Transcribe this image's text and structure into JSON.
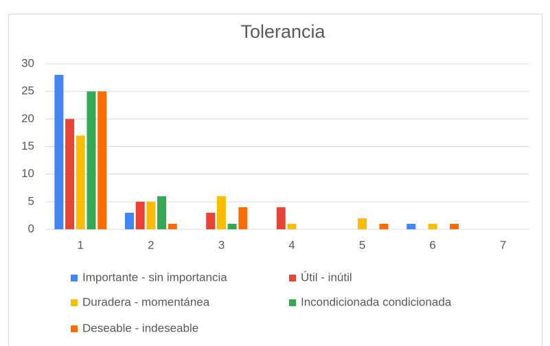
{
  "chart_data": {
    "type": "bar",
    "title": "Tolerancia",
    "categories": [
      "1",
      "2",
      "3",
      "4",
      "5",
      "6",
      "7"
    ],
    "series": [
      {
        "name": "Importante - sin importancia",
        "color": "#4285f4",
        "values": [
          28,
          3,
          0,
          0,
          0,
          1,
          0
        ]
      },
      {
        "name": "Útil - inútil",
        "color": "#ea4335",
        "values": [
          20,
          5,
          3,
          4,
          0,
          0,
          0
        ]
      },
      {
        "name": "Duradera - momentánea",
        "color": "#fbbc04",
        "values": [
          17,
          5,
          6,
          1,
          2,
          1,
          0
        ]
      },
      {
        "name": "Incondicionada condicionada",
        "color": "#34a853",
        "values": [
          25,
          6,
          1,
          0,
          0,
          0,
          0
        ]
      },
      {
        "name": "Deseable - indeseable",
        "color": "#ff6d01",
        "values": [
          25,
          1,
          4,
          0,
          1,
          1,
          0
        ]
      }
    ],
    "ylim": [
      0,
      30
    ],
    "yticks": [
      0,
      5,
      10,
      15,
      20,
      25,
      30
    ],
    "grid": true,
    "legend": "bottom"
  }
}
